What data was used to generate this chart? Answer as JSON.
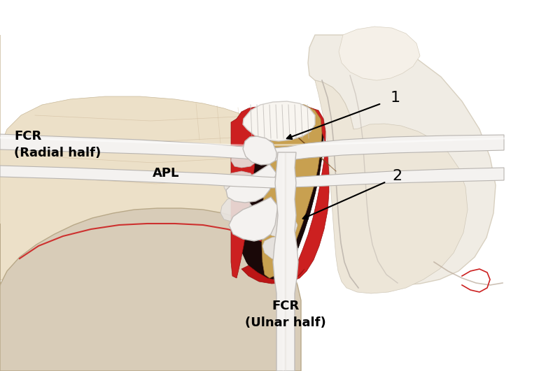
{
  "fig_width": 8.0,
  "fig_height": 5.31,
  "dpi": 100,
  "bg": "#ffffff",
  "bone_light": "#ece0c8",
  "bone_mid": "#ddd0b5",
  "bone_dark": "#c8b898",
  "skin_light": "#e8dcc8",
  "skin_mid": "#d8ccb8",
  "right_bone": "#e8e0d0",
  "right_bone_light": "#f0ece4",
  "red_bright": "#cc2020",
  "red_dark": "#a01818",
  "tan_bone": "#c8a050",
  "brown_bone": "#8b5520",
  "white_tendon": "#f4f2f0",
  "gray_tendon": "#d0ccc8",
  "fibrous": "#f8f5f0",
  "wound_dark": "#2a1008",
  "capsule_line": "#c8c0b8",
  "outline": "#333333",
  "label_1": "1",
  "label_2": "2",
  "label_fcr_radial": "FCR\n(Radial half)",
  "label_apl": "APL",
  "label_fcr_ulnar": "FCR\n(Ulnar half)"
}
